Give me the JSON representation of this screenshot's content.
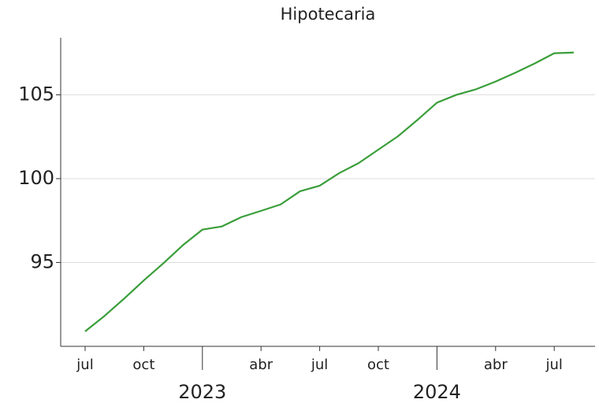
{
  "chart_data": {
    "type": "line",
    "title": "Hipotecaria",
    "x": [
      "2022-07",
      "2022-08",
      "2022-09",
      "2022-10",
      "2022-11",
      "2022-12",
      "2023-01",
      "2023-02",
      "2023-03",
      "2023-04",
      "2023-05",
      "2023-06",
      "2023-07",
      "2023-08",
      "2023-09",
      "2023-10",
      "2023-11",
      "2023-12",
      "2024-01",
      "2024-02",
      "2024-03",
      "2024-04",
      "2024-05",
      "2024-06",
      "2024-07",
      "2024-08"
    ],
    "series": [
      {
        "name": "Hipotecaria",
        "color": "#3a9e3a",
        "values": [
          90.89,
          91.82,
          92.85,
          93.93,
          94.95,
          96.03,
          96.96,
          97.15,
          97.71,
          98.08,
          98.46,
          99.25,
          99.58,
          100.33,
          100.93,
          101.73,
          102.52,
          103.5,
          104.53,
          105.0,
          105.33,
          105.79,
          106.31,
          106.87,
          107.48,
          107.52
        ]
      }
    ],
    "ylim": [
      90,
      108.4
    ],
    "yticks": [
      95,
      100,
      105
    ],
    "grid": true,
    "xticks": [
      {
        "value": "2022-07",
        "label": "jul"
      },
      {
        "value": "2022-10",
        "label": "oct"
      },
      {
        "value": "2023-04",
        "label": "abr"
      },
      {
        "value": "2023-07",
        "label": "jul"
      },
      {
        "value": "2023-10",
        "label": "oct"
      },
      {
        "value": "2024-04",
        "label": "abr"
      },
      {
        "value": "2024-07",
        "label": "jul"
      }
    ],
    "year_ticks": [
      {
        "value": "2023-01",
        "label": "2023"
      },
      {
        "value": "2024-01",
        "label": "2024"
      }
    ]
  }
}
